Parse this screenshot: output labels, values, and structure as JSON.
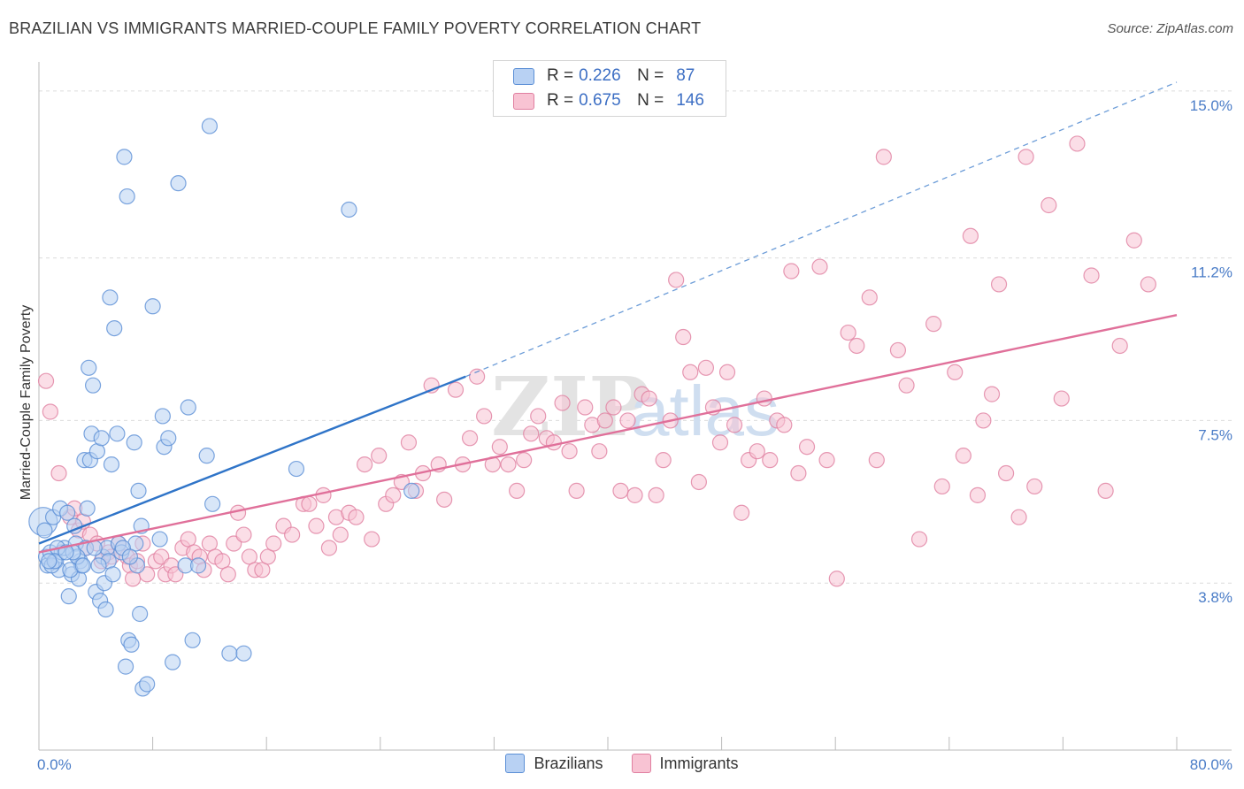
{
  "header": {
    "title": "BRAZILIAN VS IMMIGRANTS MARRIED-COUPLE FAMILY POVERTY CORRELATION CHART",
    "source": "Source: ZipAtlas.com"
  },
  "watermark": {
    "part1": "ZIP",
    "part2": "atlas"
  },
  "colors": {
    "blue_fill": "#b8d1f3",
    "blue_stroke": "#5b8fd6",
    "blue_line": "#2f74c8",
    "pink_fill": "#f8c3d3",
    "pink_stroke": "#e07fa0",
    "pink_line": "#e0709a",
    "tick_label": "#4a7cc7",
    "grid": "#dcdcdc"
  },
  "legend_top": {
    "rows": [
      {
        "r_key": "R =",
        "r_val": "0.226",
        "n_key": "N =",
        "n_val": "87"
      },
      {
        "r_key": "R =",
        "r_val": "0.675",
        "n_key": "N =",
        "n_val": "146"
      }
    ]
  },
  "legend_bottom": {
    "items": [
      "Brazilians",
      "Immigrants"
    ]
  },
  "chart_data": {
    "type": "scatter",
    "title": "BRAZILIAN VS IMMIGRANTS MARRIED-COUPLE FAMILY POVERTY CORRELATION CHART",
    "xlabel": "",
    "ylabel": "Married-Couple Family Poverty",
    "xlim": [
      0,
      80
    ],
    "ylim": [
      0,
      15.5
    ],
    "x_tick_labels": [
      "0.0%",
      "80.0%"
    ],
    "y_ticks": [
      3.8,
      7.5,
      11.2,
      15.0
    ],
    "y_tick_labels": [
      "3.8%",
      "7.5%",
      "11.2%",
      "15.0%"
    ],
    "grid": "horizontal dashed",
    "legend_placement": "top-center",
    "series": [
      {
        "name": "Brazilians",
        "R": 0.226,
        "N": 87,
        "trend": {
          "x0": 0,
          "y0": 4.7,
          "x1": 30,
          "y1": 8.5,
          "dashed_to_x": 80,
          "dashed_to_y": 15.2
        },
        "points": [
          [
            0.3,
            5.2
          ],
          [
            0.5,
            4.4
          ],
          [
            0.6,
            4.2
          ],
          [
            0.8,
            4.5
          ],
          [
            1.0,
            5.3
          ],
          [
            1.2,
            4.3
          ],
          [
            1.4,
            4.1
          ],
          [
            1.5,
            5.5
          ],
          [
            1.6,
            4.5
          ],
          [
            1.8,
            4.6
          ],
          [
            2.0,
            5.4
          ],
          [
            2.1,
            3.5
          ],
          [
            2.3,
            4.0
          ],
          [
            2.5,
            5.1
          ],
          [
            2.6,
            4.7
          ],
          [
            2.8,
            3.9
          ],
          [
            2.9,
            4.3
          ],
          [
            3.0,
            4.2
          ],
          [
            3.2,
            6.6
          ],
          [
            3.3,
            4.6
          ],
          [
            3.4,
            5.5
          ],
          [
            3.5,
            8.7
          ],
          [
            3.6,
            6.6
          ],
          [
            3.7,
            7.2
          ],
          [
            3.8,
            8.3
          ],
          [
            4.0,
            3.6
          ],
          [
            4.1,
            6.8
          ],
          [
            4.3,
            3.4
          ],
          [
            4.4,
            7.1
          ],
          [
            4.5,
            4.4
          ],
          [
            4.6,
            3.8
          ],
          [
            4.7,
            3.2
          ],
          [
            4.8,
            4.6
          ],
          [
            4.9,
            4.3
          ],
          [
            5.0,
            10.3
          ],
          [
            5.1,
            6.5
          ],
          [
            5.3,
            9.6
          ],
          [
            5.5,
            7.2
          ],
          [
            5.6,
            4.7
          ],
          [
            5.8,
            4.5
          ],
          [
            6.0,
            13.5
          ],
          [
            6.1,
            1.9
          ],
          [
            6.2,
            12.6
          ],
          [
            6.3,
            2.5
          ],
          [
            6.5,
            2.4
          ],
          [
            6.7,
            7.0
          ],
          [
            6.8,
            4.7
          ],
          [
            7.0,
            5.9
          ],
          [
            7.1,
            3.1
          ],
          [
            7.2,
            5.1
          ],
          [
            7.3,
            1.4
          ],
          [
            7.6,
            1.5
          ],
          [
            8.0,
            10.1
          ],
          [
            8.5,
            4.8
          ],
          [
            8.7,
            7.6
          ],
          [
            8.8,
            6.9
          ],
          [
            9.1,
            7.1
          ],
          [
            9.4,
            2.0
          ],
          [
            9.8,
            12.9
          ],
          [
            10.3,
            4.2
          ],
          [
            10.5,
            7.8
          ],
          [
            10.8,
            2.5
          ],
          [
            11.2,
            4.2
          ],
          [
            11.8,
            6.7
          ],
          [
            12.0,
            14.2
          ],
          [
            12.2,
            5.6
          ],
          [
            13.4,
            2.2
          ],
          [
            14.4,
            2.2
          ],
          [
            18.1,
            6.4
          ],
          [
            21.8,
            12.3
          ],
          [
            26.2,
            5.9
          ],
          [
            0.4,
            5.0
          ],
          [
            0.9,
            4.2
          ],
          [
            1.3,
            4.6
          ],
          [
            2.2,
            4.1
          ],
          [
            2.7,
            4.4
          ],
          [
            3.9,
            4.6
          ],
          [
            4.2,
            4.2
          ],
          [
            6.9,
            4.2
          ],
          [
            1.1,
            4.3
          ],
          [
            2.4,
            4.5
          ],
          [
            3.1,
            4.2
          ],
          [
            5.9,
            4.6
          ],
          [
            6.4,
            4.4
          ],
          [
            0.7,
            4.3
          ],
          [
            1.9,
            4.5
          ],
          [
            5.2,
            4.0
          ]
        ]
      },
      {
        "name": "Immigrants",
        "R": 0.675,
        "N": 146,
        "trend": {
          "x0": 0,
          "y0": 4.5,
          "x1": 80,
          "y1": 9.9
        },
        "points": [
          [
            0.5,
            8.4
          ],
          [
            0.8,
            7.7
          ],
          [
            1.4,
            6.3
          ],
          [
            2.2,
            5.3
          ],
          [
            2.5,
            5.5
          ],
          [
            2.8,
            5.0
          ],
          [
            3.1,
            5.2
          ],
          [
            3.3,
            4.6
          ],
          [
            3.6,
            4.9
          ],
          [
            4.1,
            4.7
          ],
          [
            4.4,
            4.3
          ],
          [
            4.9,
            4.5
          ],
          [
            5.1,
            4.4
          ],
          [
            5.6,
            4.7
          ],
          [
            6.2,
            4.4
          ],
          [
            6.4,
            4.2
          ],
          [
            6.6,
            3.9
          ],
          [
            6.9,
            4.3
          ],
          [
            7.3,
            4.7
          ],
          [
            7.6,
            4.0
          ],
          [
            8.2,
            4.3
          ],
          [
            8.6,
            4.4
          ],
          [
            8.9,
            4.0
          ],
          [
            9.3,
            4.2
          ],
          [
            9.6,
            4.0
          ],
          [
            10.1,
            4.6
          ],
          [
            10.5,
            4.8
          ],
          [
            10.9,
            4.5
          ],
          [
            11.3,
            4.4
          ],
          [
            11.6,
            4.1
          ],
          [
            12.0,
            4.7
          ],
          [
            12.4,
            4.4
          ],
          [
            12.9,
            4.3
          ],
          [
            13.3,
            4.0
          ],
          [
            13.7,
            4.7
          ],
          [
            14.0,
            5.4
          ],
          [
            14.4,
            4.9
          ],
          [
            14.8,
            4.4
          ],
          [
            15.2,
            4.1
          ],
          [
            15.7,
            4.1
          ],
          [
            16.1,
            4.4
          ],
          [
            16.5,
            4.7
          ],
          [
            17.2,
            5.1
          ],
          [
            17.8,
            4.9
          ],
          [
            18.6,
            5.6
          ],
          [
            19.0,
            5.6
          ],
          [
            19.5,
            5.1
          ],
          [
            20.0,
            5.8
          ],
          [
            20.4,
            4.6
          ],
          [
            20.9,
            5.3
          ],
          [
            21.2,
            4.9
          ],
          [
            21.8,
            5.4
          ],
          [
            22.3,
            5.3
          ],
          [
            22.9,
            6.5
          ],
          [
            23.4,
            4.8
          ],
          [
            23.9,
            6.7
          ],
          [
            24.4,
            5.6
          ],
          [
            24.9,
            5.8
          ],
          [
            25.5,
            6.1
          ],
          [
            26.0,
            7.0
          ],
          [
            26.5,
            5.9
          ],
          [
            27.0,
            6.3
          ],
          [
            27.6,
            8.3
          ],
          [
            28.1,
            6.5
          ],
          [
            28.5,
            5.7
          ],
          [
            29.3,
            8.2
          ],
          [
            29.8,
            6.5
          ],
          [
            30.3,
            7.1
          ],
          [
            30.8,
            8.5
          ],
          [
            31.3,
            7.6
          ],
          [
            31.9,
            6.5
          ],
          [
            32.4,
            6.9
          ],
          [
            33.0,
            6.5
          ],
          [
            33.6,
            5.9
          ],
          [
            34.1,
            6.6
          ],
          [
            34.6,
            7.2
          ],
          [
            35.1,
            7.6
          ],
          [
            35.7,
            7.1
          ],
          [
            36.2,
            7.0
          ],
          [
            36.8,
            7.9
          ],
          [
            37.3,
            6.8
          ],
          [
            37.8,
            5.9
          ],
          [
            38.4,
            7.8
          ],
          [
            38.9,
            7.4
          ],
          [
            39.4,
            6.8
          ],
          [
            39.8,
            7.5
          ],
          [
            40.4,
            7.8
          ],
          [
            40.9,
            5.9
          ],
          [
            41.4,
            7.5
          ],
          [
            41.9,
            5.8
          ],
          [
            42.4,
            8.1
          ],
          [
            42.9,
            8.0
          ],
          [
            43.4,
            5.8
          ],
          [
            43.9,
            6.6
          ],
          [
            44.4,
            7.5
          ],
          [
            44.8,
            10.7
          ],
          [
            45.3,
            9.4
          ],
          [
            45.8,
            8.6
          ],
          [
            46.4,
            6.1
          ],
          [
            46.9,
            8.7
          ],
          [
            47.4,
            7.8
          ],
          [
            47.9,
            7.0
          ],
          [
            48.4,
            8.6
          ],
          [
            48.9,
            7.4
          ],
          [
            49.4,
            5.4
          ],
          [
            49.9,
            6.6
          ],
          [
            50.5,
            6.8
          ],
          [
            51.0,
            8.0
          ],
          [
            51.4,
            6.6
          ],
          [
            51.9,
            7.5
          ],
          [
            52.4,
            7.4
          ],
          [
            52.9,
            10.9
          ],
          [
            53.4,
            6.3
          ],
          [
            54.0,
            6.9
          ],
          [
            54.9,
            11.0
          ],
          [
            55.4,
            6.6
          ],
          [
            56.1,
            3.9
          ],
          [
            56.9,
            9.5
          ],
          [
            57.5,
            9.2
          ],
          [
            58.4,
            10.3
          ],
          [
            58.9,
            6.6
          ],
          [
            59.4,
            13.5
          ],
          [
            60.4,
            9.1
          ],
          [
            61.0,
            8.3
          ],
          [
            61.9,
            4.8
          ],
          [
            62.9,
            9.7
          ],
          [
            63.5,
            6.0
          ],
          [
            64.4,
            8.6
          ],
          [
            65.0,
            6.7
          ],
          [
            65.5,
            11.7
          ],
          [
            66.0,
            5.8
          ],
          [
            66.4,
            7.5
          ],
          [
            67.0,
            8.1
          ],
          [
            67.5,
            10.6
          ],
          [
            68.0,
            6.3
          ],
          [
            68.9,
            5.3
          ],
          [
            69.4,
            13.5
          ],
          [
            70.0,
            6.0
          ],
          [
            71.0,
            12.4
          ],
          [
            71.9,
            8.0
          ],
          [
            73.0,
            13.8
          ],
          [
            74.0,
            10.8
          ],
          [
            75.0,
            5.9
          ],
          [
            76.0,
            9.2
          ],
          [
            77.0,
            11.6
          ],
          [
            78.0,
            10.6
          ]
        ]
      }
    ]
  }
}
